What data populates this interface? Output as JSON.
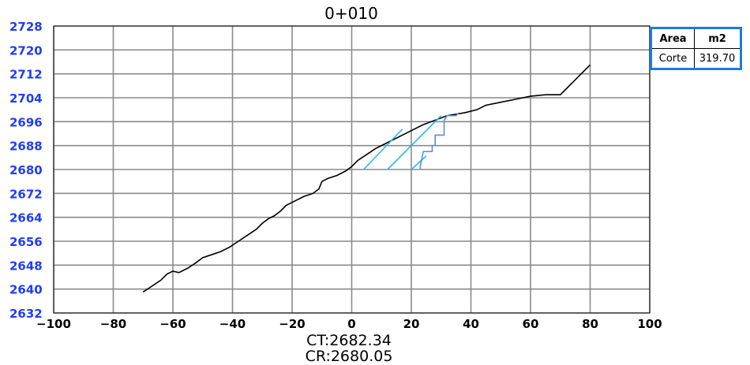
{
  "chart_data": {
    "type": "line",
    "title": "0+010",
    "xlim": [
      -100,
      100
    ],
    "ylim": [
      2632,
      2728
    ],
    "x_ticks": [
      -100,
      -80,
      -60,
      -40,
      -20,
      0,
      20,
      40,
      60,
      80,
      100
    ],
    "y_ticks": [
      2632,
      2640,
      2648,
      2656,
      2664,
      2672,
      2680,
      2688,
      2696,
      2704,
      2712,
      2720,
      2728
    ],
    "grid": true,
    "colors": {
      "terrain": "#000000",
      "cut": "#29b6e8",
      "steps": "#5b8fd0",
      "yticks": "#1f3df5",
      "box_border": "#1e7be0"
    },
    "series": [
      {
        "role": "terrain",
        "points": [
          [
            -70,
            2639
          ],
          [
            -67,
            2641
          ],
          [
            -64,
            2643
          ],
          [
            -62,
            2645
          ],
          [
            -60,
            2646
          ],
          [
            -58,
            2645.5
          ],
          [
            -55,
            2647
          ],
          [
            -52,
            2649
          ],
          [
            -50,
            2650.5
          ],
          [
            -47,
            2651.5
          ],
          [
            -44,
            2652.5
          ],
          [
            -41,
            2654
          ],
          [
            -38,
            2656
          ],
          [
            -35,
            2658
          ],
          [
            -32,
            2660
          ],
          [
            -30,
            2662
          ],
          [
            -28,
            2663.5
          ],
          [
            -26,
            2664.5
          ],
          [
            -24,
            2666
          ],
          [
            -22,
            2668
          ],
          [
            -20,
            2669
          ],
          [
            -18,
            2670
          ],
          [
            -16,
            2671
          ],
          [
            -13,
            2672
          ],
          [
            -11,
            2673.5
          ],
          [
            -10,
            2676
          ],
          [
            -8,
            2677
          ],
          [
            -5,
            2678
          ],
          [
            -2,
            2679.5
          ],
          [
            0,
            2681
          ],
          [
            2,
            2683
          ],
          [
            5,
            2685
          ],
          [
            8,
            2687
          ],
          [
            12,
            2689
          ],
          [
            16,
            2691
          ],
          [
            20,
            2693
          ],
          [
            24,
            2695
          ],
          [
            28,
            2696.5
          ],
          [
            32,
            2698
          ],
          [
            35,
            2698.5
          ],
          [
            38,
            2699
          ],
          [
            42,
            2700
          ],
          [
            45,
            2701.5
          ],
          [
            50,
            2702.5
          ],
          [
            55,
            2703.5
          ],
          [
            60,
            2704.5
          ],
          [
            65,
            2705
          ],
          [
            70,
            2705
          ],
          [
            72,
            2707
          ],
          [
            74,
            2709
          ],
          [
            76,
            2711
          ],
          [
            78,
            2713
          ],
          [
            80,
            2715
          ]
        ]
      },
      {
        "role": "cut-hatch",
        "lines": [
          [
            [
              4,
              2680
            ],
            [
              17,
              2693.5
            ]
          ],
          [
            [
              12,
              2680
            ],
            [
              30,
              2698
            ]
          ],
          [
            [
              20,
              2680
            ],
            [
              25,
              2684.5
            ]
          ]
        ]
      },
      {
        "role": "cut-steps",
        "points": [
          [
            23,
            2680
          ],
          [
            23,
            2681
          ],
          [
            24,
            2686
          ],
          [
            27,
            2686
          ],
          [
            27,
            2688
          ],
          [
            28,
            2688
          ],
          [
            28,
            2691.5
          ],
          [
            31,
            2691.5
          ],
          [
            31,
            2696.5
          ],
          [
            32,
            2698
          ],
          [
            35,
            2698
          ],
          [
            36,
            2699
          ]
        ]
      }
    ],
    "annotations": [
      "CT:2682.34",
      "CR:2680.05"
    ]
  },
  "area_table": {
    "header": [
      "Area",
      "m2"
    ],
    "row": [
      "Corte",
      "319.70"
    ]
  }
}
